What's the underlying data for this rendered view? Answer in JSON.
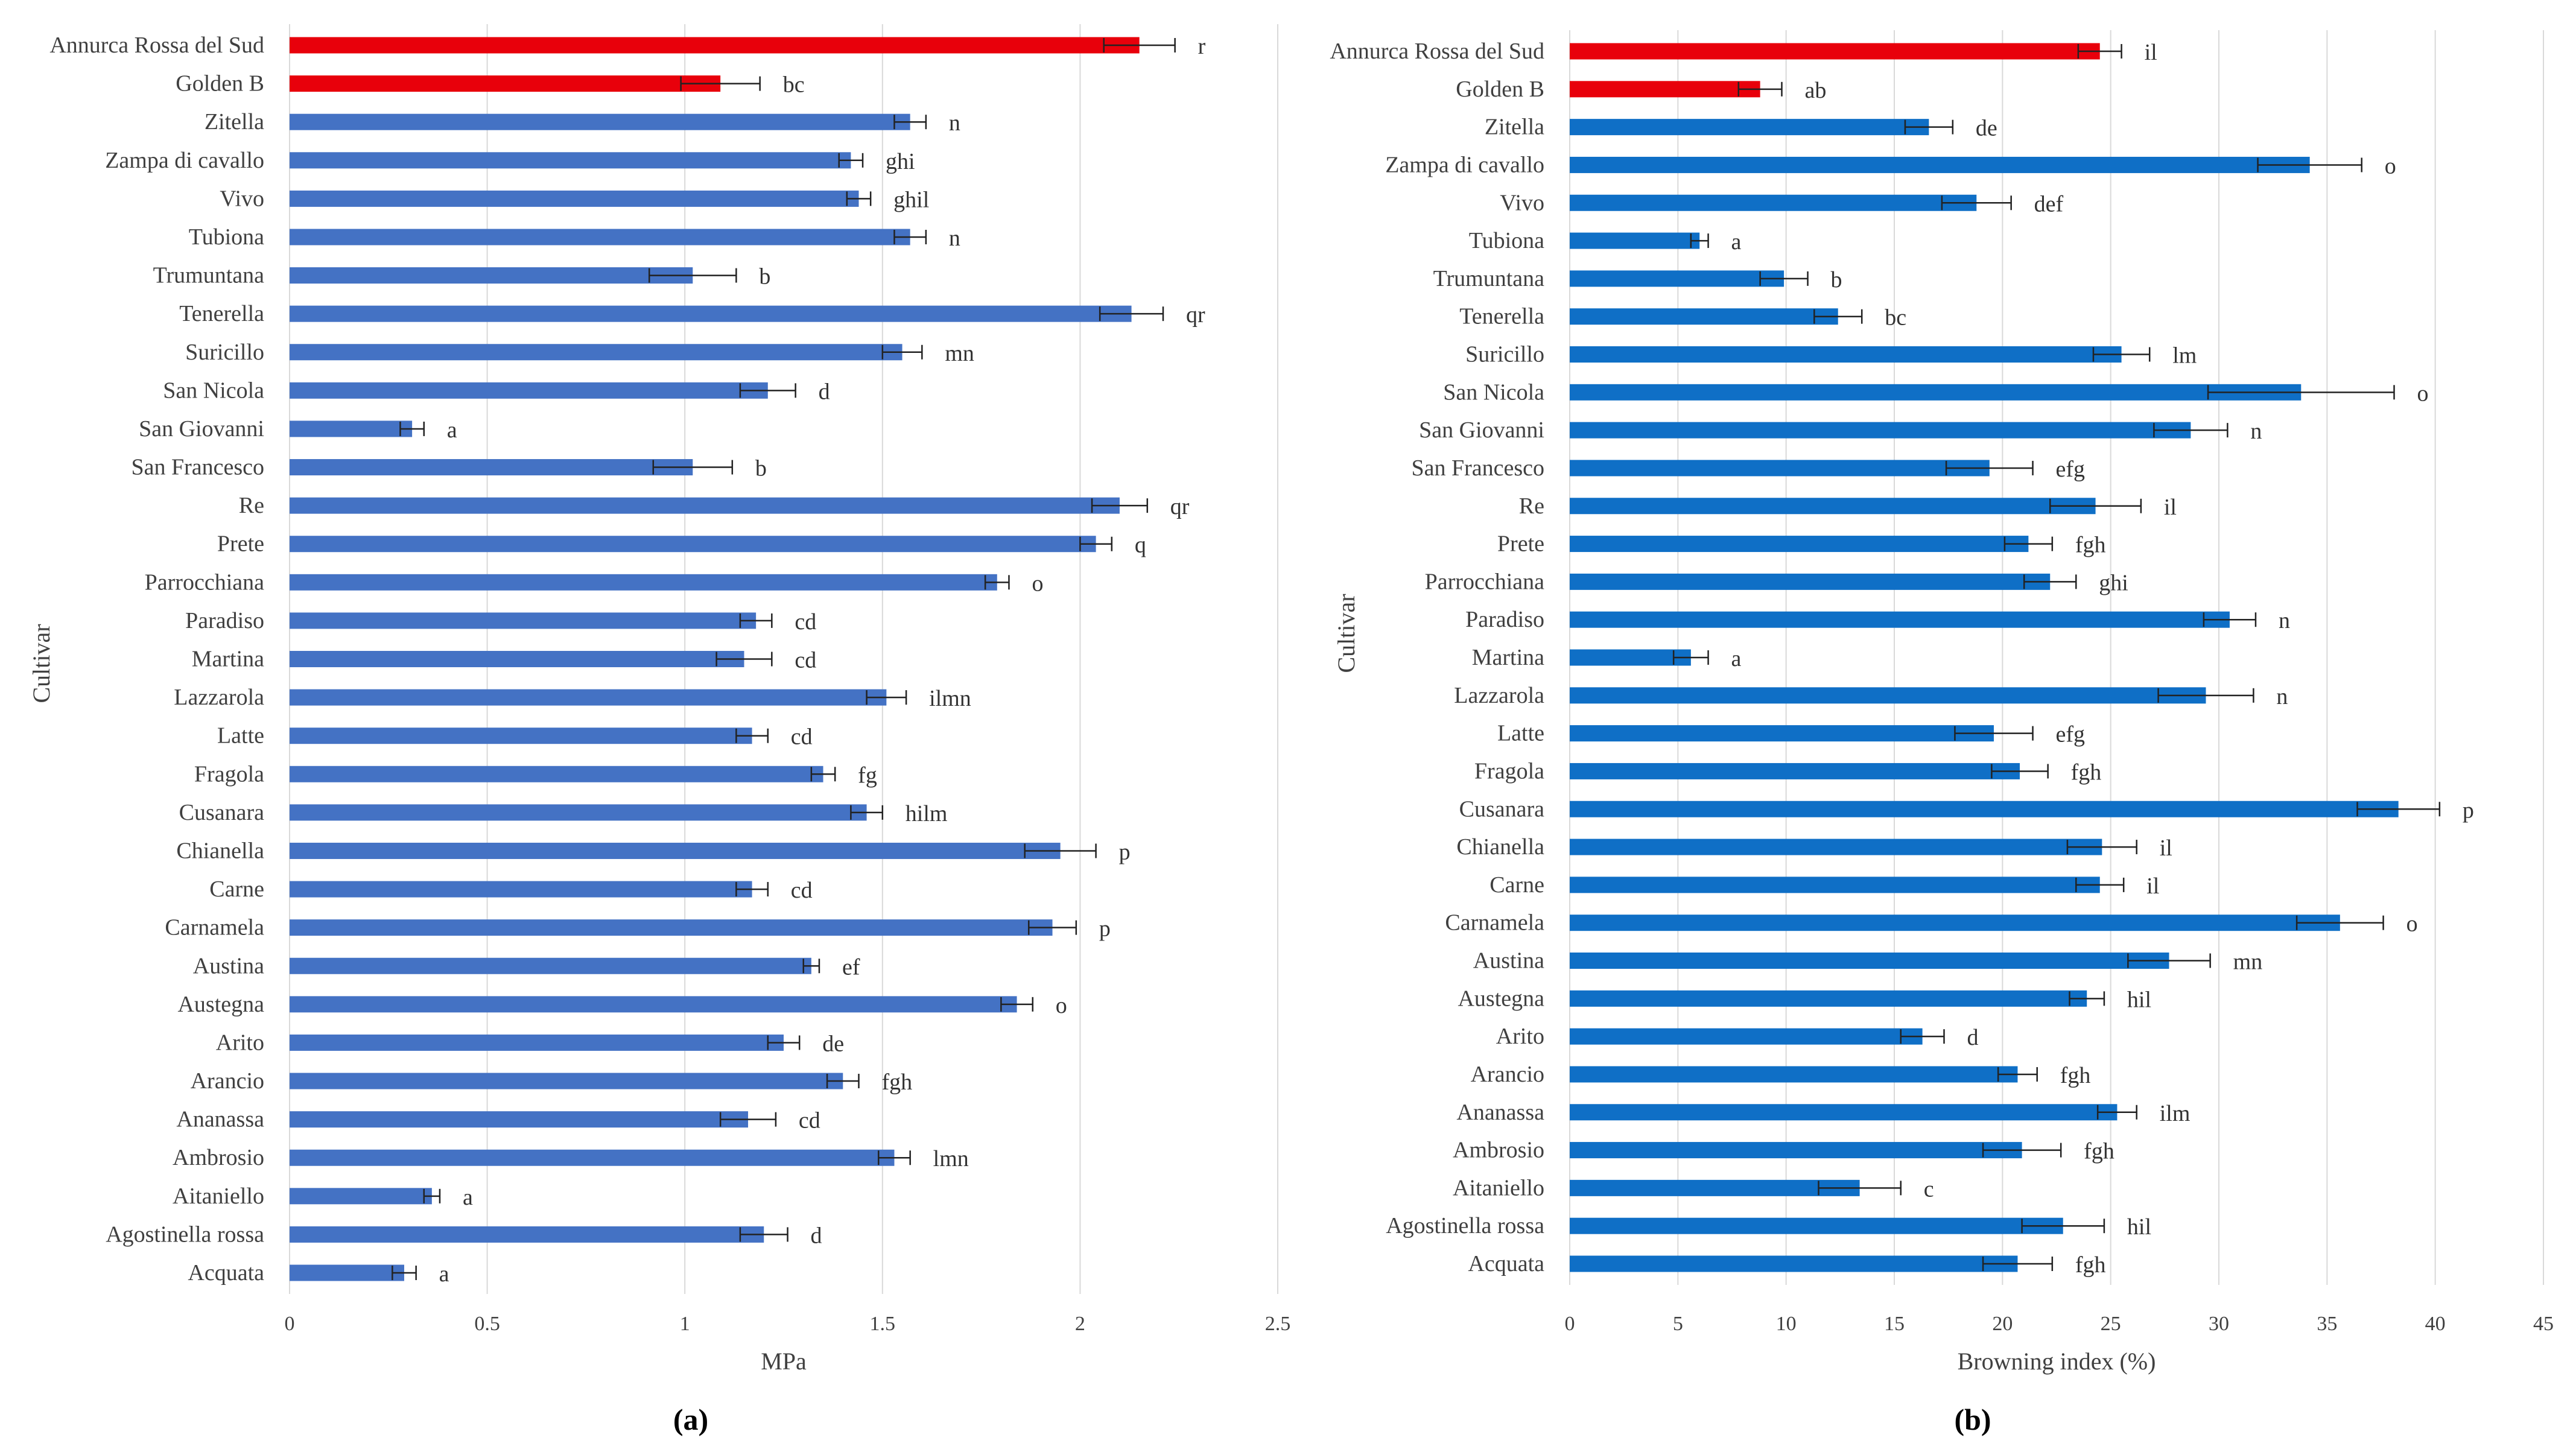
{
  "chart_data": [
    {
      "type": "bar",
      "orientation": "horizontal",
      "panel_label": "(a)",
      "xlabel": "MPa",
      "ylabel": "Cultivar",
      "xlim": [
        0,
        2.5
      ],
      "xticks": [
        "0",
        "0.5",
        "1",
        "1.5",
        "2",
        "2.5"
      ],
      "grid": true,
      "highlight_color": "#e8000b",
      "bar_color": "#4472c4",
      "categories": [
        "Annurca Rossa del Sud",
        "Golden B",
        "Zitella",
        "Zampa di cavallo",
        "Vivo",
        "Tubiona",
        "Trumuntana",
        "Tenerella",
        "Suricillo",
        "San Nicola",
        "San Giovanni",
        "San Francesco",
        "Re",
        "Prete",
        "Parrocchiana",
        "Paradiso",
        "Martina",
        "Lazzarola",
        "Latte",
        "Fragola",
        "Cusanara",
        "Chianella",
        "Carne",
        "Carnamela",
        "Austina",
        "Austegna",
        "Arito",
        "Arancio",
        "Ananassa",
        "Ambrosio",
        "Aitaniello",
        "Agostinella rossa",
        "Acquata"
      ],
      "values": [
        2.15,
        1.09,
        1.57,
        1.42,
        1.44,
        1.57,
        1.02,
        2.13,
        1.55,
        1.21,
        0.31,
        1.02,
        2.1,
        2.04,
        1.79,
        1.18,
        1.15,
        1.51,
        1.17,
        1.35,
        1.46,
        1.95,
        1.17,
        1.93,
        1.32,
        1.84,
        1.25,
        1.4,
        1.16,
        1.53,
        0.36,
        1.2,
        0.29
      ],
      "errors": [
        0.09,
        0.1,
        0.04,
        0.03,
        0.03,
        0.04,
        0.11,
        0.08,
        0.05,
        0.07,
        0.03,
        0.1,
        0.07,
        0.04,
        0.03,
        0.04,
        0.07,
        0.05,
        0.04,
        0.03,
        0.04,
        0.09,
        0.04,
        0.06,
        0.02,
        0.04,
        0.04,
        0.04,
        0.07,
        0.04,
        0.02,
        0.06,
        0.03
      ],
      "highlighted": [
        "Annurca Rossa del Sud",
        "Golden B"
      ],
      "significance": [
        "r",
        "bc",
        "n",
        "ghi",
        "ghil",
        "n",
        "b",
        "qr",
        "mn",
        "d",
        "a",
        "b",
        "qr",
        "q",
        "o",
        "cd",
        "cd",
        "ilmn",
        "cd",
        "fg",
        "hilm",
        "p",
        "cd",
        "p",
        "ef",
        "o",
        "de",
        "fgh",
        "cd",
        "lmn",
        "a",
        "d",
        "a"
      ]
    },
    {
      "type": "bar",
      "orientation": "horizontal",
      "panel_label": "(b)",
      "xlabel": "Browning index (%)",
      "ylabel": "Cultivar",
      "xlim": [
        0,
        45
      ],
      "xticks": [
        "0",
        "5",
        "10",
        "15",
        "20",
        "25",
        "30",
        "35",
        "40",
        "45"
      ],
      "grid": true,
      "highlight_color": "#e8000b",
      "bar_color": "#0f6fc6",
      "categories": [
        "Annurca Rossa del Sud",
        "Golden B",
        "Zitella",
        "Zampa di cavallo",
        "Vivo",
        "Tubiona",
        "Trumuntana",
        "Tenerella",
        "Suricillo",
        "San Nicola",
        "San Giovanni",
        "San Francesco",
        "Re",
        "Prete",
        "Parrocchiana",
        "Paradiso",
        "Martina",
        "Lazzarola",
        "Latte",
        "Fragola",
        "Cusanara",
        "Chianella",
        "Carne",
        "Carnamela",
        "Austina",
        "Austegna",
        "Arito",
        "Arancio",
        "Ananassa",
        "Ambrosio",
        "Aitaniello",
        "Agostinella rossa",
        "Acquata"
      ],
      "values": [
        24.5,
        8.8,
        16.6,
        34.2,
        18.8,
        6.0,
        9.9,
        12.4,
        25.5,
        33.8,
        28.7,
        19.4,
        24.3,
        21.2,
        22.2,
        30.5,
        5.6,
        29.4,
        19.6,
        20.8,
        38.3,
        24.6,
        24.5,
        35.6,
        27.7,
        23.9,
        16.3,
        20.7,
        25.3,
        20.9,
        13.4,
        22.8,
        20.7
      ],
      "errors": [
        1.0,
        1.0,
        1.1,
        2.4,
        1.6,
        0.4,
        1.1,
        1.1,
        1.3,
        4.3,
        1.7,
        2.0,
        2.1,
        1.1,
        1.2,
        1.2,
        0.8,
        2.2,
        1.8,
        1.3,
        1.9,
        1.6,
        1.1,
        2.0,
        1.9,
        0.8,
        1.0,
        0.9,
        0.9,
        1.8,
        1.9,
        1.9,
        1.6
      ],
      "highlighted": [
        "Annurca Rossa del Sud",
        "Golden B"
      ],
      "significance": [
        "il",
        "ab",
        "de",
        "o",
        "def",
        "a",
        "b",
        "bc",
        "lm",
        "o",
        "n",
        "efg",
        "il",
        "fgh",
        "ghi",
        "n",
        "a",
        "n",
        "efg",
        "fgh",
        "p",
        "il",
        "il",
        "o",
        "mn",
        "hil",
        "d",
        "fgh",
        "ilm",
        "fgh",
        "c",
        "hil",
        "fgh"
      ]
    }
  ]
}
